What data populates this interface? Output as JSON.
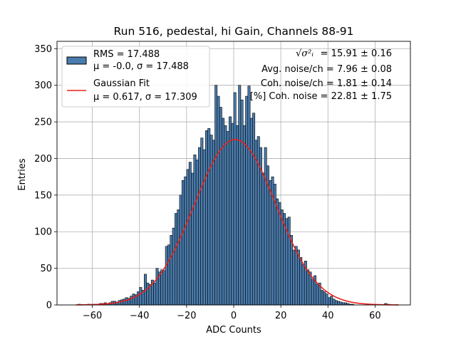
{
  "chart_data": {
    "type": "bar",
    "title": "Run 516, pedestal, hi Gain, Channels 88-91",
    "xlabel": "ADC Counts",
    "ylabel": "Entries",
    "xlim": [
      -75,
      75
    ],
    "ylim": [
      0,
      360
    ],
    "x_ticks": [
      -60,
      -40,
      -20,
      0,
      20,
      40,
      60
    ],
    "y_ticks": [
      0,
      50,
      100,
      150,
      200,
      250,
      300,
      350
    ],
    "x_tick_labels": [
      "−60",
      "−40",
      "−20",
      "0",
      "20",
      "40",
      "60"
    ],
    "y_tick_labels": [
      "0",
      "50",
      "100",
      "150",
      "200",
      "250",
      "300",
      "350"
    ],
    "grid": true,
    "bin_width": 1,
    "bin_start": -66,
    "histogram_counts": [
      1,
      0,
      0,
      0,
      1,
      0,
      1,
      1,
      1,
      2,
      2,
      3,
      2,
      3,
      5,
      5,
      4,
      6,
      7,
      8,
      10,
      9,
      12,
      15,
      14,
      18,
      24,
      20,
      42,
      30,
      28,
      34,
      30,
      50,
      45,
      48,
      47,
      80,
      82,
      95,
      105,
      125,
      130,
      150,
      170,
      175,
      185,
      195,
      180,
      205,
      198,
      215,
      228,
      212,
      238,
      241,
      232,
      225,
      300,
      285,
      270,
      255,
      245,
      237,
      257,
      248,
      290,
      245,
      300,
      280,
      245,
      285,
      299,
      255,
      262,
      225,
      230,
      215,
      180,
      215,
      190,
      170,
      175,
      165,
      145,
      140,
      130,
      125,
      118,
      120,
      95,
      75,
      80,
      75,
      65,
      55,
      60,
      48,
      45,
      35,
      40,
      28,
      30,
      20,
      18,
      15,
      10,
      12,
      8,
      6,
      5,
      4,
      3,
      3,
      2,
      1,
      1,
      0,
      0,
      0,
      0,
      0,
      0,
      0,
      0,
      0,
      0,
      0,
      0,
      0,
      2,
      1
    ],
    "series": [
      {
        "name_line1": "RMS = 17.488",
        "name_line2": "μ = -0.0, σ = 17.488",
        "kind": "histogram",
        "color": "#4a7cad",
        "edge": "#000000"
      },
      {
        "name_line1": "Gaussian Fit",
        "name_line2": "μ = 0.617, σ = 17.309",
        "kind": "line",
        "color": "#e8211a",
        "mu": 0.617,
        "sigma": 17.309,
        "amplitude": 226,
        "x_range": [
          -67,
          70
        ]
      }
    ],
    "legend_position": "upper left",
    "annotations": [
      {
        "math_part": "√σ²ᵢ",
        "value_text": "= 15.91 ± 0.16"
      },
      {
        "text": "Avg. noise/ch = 7.96 ± 0.08"
      },
      {
        "text": "Coh. noise/ch = 1.81 ± 0.14"
      },
      {
        "text": "[%] Coh. noise = 22.81 ± 1.75"
      }
    ]
  }
}
